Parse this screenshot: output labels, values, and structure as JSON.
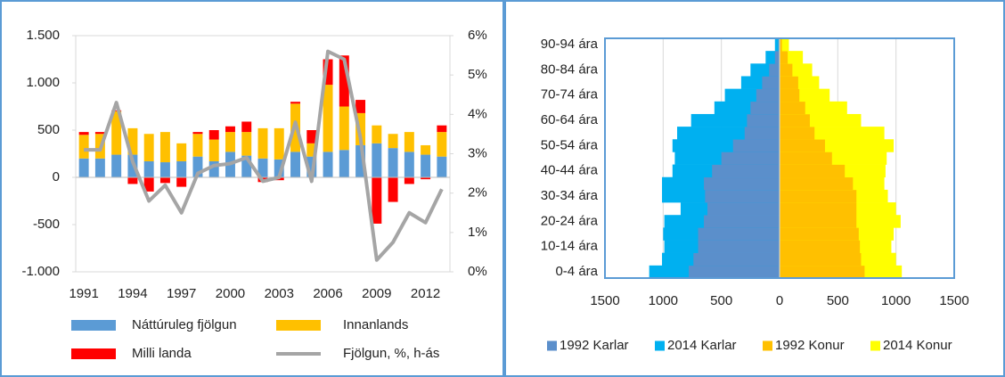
{
  "chart_data": [
    {
      "type": "bar",
      "legend": "bottom",
      "categories": [
        "1991",
        null,
        null,
        "1994",
        null,
        null,
        "1997",
        null,
        null,
        "2000",
        null,
        null,
        "2003",
        null,
        null,
        "2006",
        null,
        null,
        "2009",
        null,
        null,
        "2012",
        null
      ],
      "series": [
        {
          "name": "Náttúruleg fjölgun",
          "color": "#5b9bd5",
          "values": [
            200,
            200,
            240,
            240,
            170,
            160,
            170,
            220,
            170,
            270,
            230,
            200,
            190,
            270,
            220,
            270,
            290,
            340,
            360,
            310,
            270,
            240,
            220
          ]
        },
        {
          "name": "Innanlands",
          "color": "#ffc000",
          "values": [
            250,
            260,
            460,
            280,
            290,
            320,
            190,
            240,
            230,
            210,
            250,
            320,
            330,
            510,
            140,
            710,
            460,
            340,
            190,
            150,
            210,
            100,
            260
          ]
        },
        {
          "name": "Milli landa",
          "color": "#ff0000",
          "values": [
            30,
            20,
            10,
            -70,
            -150,
            -60,
            -100,
            20,
            100,
            60,
            110,
            -50,
            -30,
            20,
            140,
            270,
            540,
            140,
            -490,
            -260,
            -70,
            -20,
            70
          ]
        },
        {
          "name": "Fjölgun, %, h-ás",
          "color": "#a5a5a5",
          "type": "line",
          "axis": "y2",
          "values": [
            3.1,
            3.1,
            4.3,
            2.8,
            1.8,
            2.2,
            1.5,
            2.5,
            2.7,
            2.75,
            2.9,
            2.3,
            2.4,
            3.8,
            2.3,
            5.6,
            5.4,
            3.4,
            0.3,
            0.75,
            1.5,
            1.25,
            2.1
          ]
        }
      ],
      "ylim": [
        -1000,
        1500
      ],
      "yticks": [
        {
          "value": -1000,
          "label": "-1.000"
        },
        -500,
        0,
        500,
        {
          "value": 1000,
          "label": "1.000"
        },
        {
          "value": 1500,
          "label": "1.500"
        }
      ],
      "y2lim": [
        0,
        6
      ],
      "y2ticks": [
        {
          "value": 0,
          "label": "0%"
        },
        {
          "value": 1,
          "label": "1%"
        },
        {
          "value": 2,
          "label": "2%"
        },
        {
          "value": 3,
          "label": "3%"
        },
        {
          "value": 4,
          "label": "4%"
        },
        {
          "value": 5,
          "label": "5%"
        },
        {
          "value": 6,
          "label": "6%"
        }
      ],
      "grid": false
    },
    {
      "type": "pyramid",
      "legend": "bottom",
      "categories": [
        "0-4 ára",
        null,
        "10-14 ára",
        null,
        "20-24 ára",
        null,
        "30-34 ára",
        null,
        "40-44 ára",
        null,
        "50-54 ára",
        null,
        "60-64 ára",
        null,
        "70-74 ára",
        null,
        "80-84 ára",
        null,
        "90-94 ára"
      ],
      "series": [
        {
          "name": "1992 Karlar",
          "color": "#5b8fcb",
          "values": [
            -780,
            -740,
            -700,
            -700,
            -650,
            -620,
            -640,
            -650,
            -580,
            -500,
            -400,
            -300,
            -280,
            -250,
            -200,
            -150,
            -90,
            -40,
            -10
          ]
        },
        {
          "name": "2014 Karlar",
          "color": "#00b0f0",
          "values": [
            -1120,
            -1010,
            -990,
            -1000,
            -990,
            -850,
            -1010,
            -1010,
            -920,
            -900,
            -920,
            -880,
            -760,
            -560,
            -470,
            -330,
            -250,
            -120,
            -40
          ]
        },
        {
          "name": "1992 Konur",
          "color": "#ffc000",
          "values": [
            730,
            700,
            690,
            680,
            660,
            660,
            660,
            630,
            560,
            450,
            390,
            300,
            260,
            220,
            170,
            160,
            110,
            70,
            20
          ]
        },
        {
          "name": "2014 Konur",
          "color": "#ffff00",
          "values": [
            1050,
            1000,
            960,
            980,
            1040,
            1000,
            930,
            900,
            910,
            920,
            980,
            900,
            700,
            580,
            430,
            340,
            280,
            200,
            80
          ]
        }
      ],
      "xlim": [
        -1500,
        1500
      ],
      "xticks": [
        {
          "value": -1500,
          "label": "1500"
        },
        {
          "value": -1000,
          "label": "1000"
        },
        {
          "value": -500,
          "label": "500"
        },
        0,
        500,
        1000,
        1500
      ],
      "grid": true
    }
  ]
}
